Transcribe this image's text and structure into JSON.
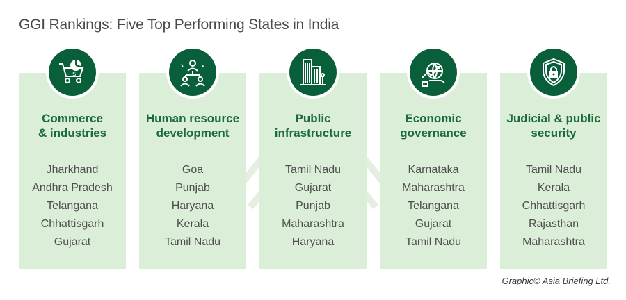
{
  "title": "GGI Rankings: Five Top Performing States in India",
  "colors": {
    "card_bg": "#dbeed7",
    "icon_bg": "#0a5f3b",
    "heading": "#1a6a3c",
    "text": "#4f4f4f"
  },
  "categories": [
    {
      "icon": "shopping-cart-chart-icon",
      "title_line1": "Commerce",
      "title_line2": "& industries",
      "states": [
        "Jharkhand",
        "Andhra Pradesh",
        "Telangana",
        "Chhattisgarh",
        "Gujarat"
      ]
    },
    {
      "icon": "people-network-icon",
      "title_line1": "Human resource",
      "title_line2": "development",
      "states": [
        "Goa",
        "Punjab",
        "Haryana",
        "Kerala",
        "Tamil Nadu"
      ]
    },
    {
      "icon": "buildings-icon",
      "title_line1": "Public",
      "title_line2": "infrastructure",
      "states": [
        "Tamil Nadu",
        "Gujarat",
        "Punjab",
        "Maharashtra",
        "Haryana"
      ]
    },
    {
      "icon": "globe-growth-icon",
      "title_line1": "Economic",
      "title_line2": "governance",
      "states": [
        "Karnataka",
        "Maharashtra",
        "Telangana",
        "Gujarat",
        "Tamil Nadu"
      ]
    },
    {
      "icon": "shield-lock-icon",
      "title_line1": "Judicial & public",
      "title_line2": "security",
      "states": [
        "Tamil Nadu",
        "Kerala",
        "Chhattisgarh",
        "Rajasthan",
        "Maharashtra"
      ]
    }
  ],
  "credit": "Graphic© Asia Briefing Ltd."
}
